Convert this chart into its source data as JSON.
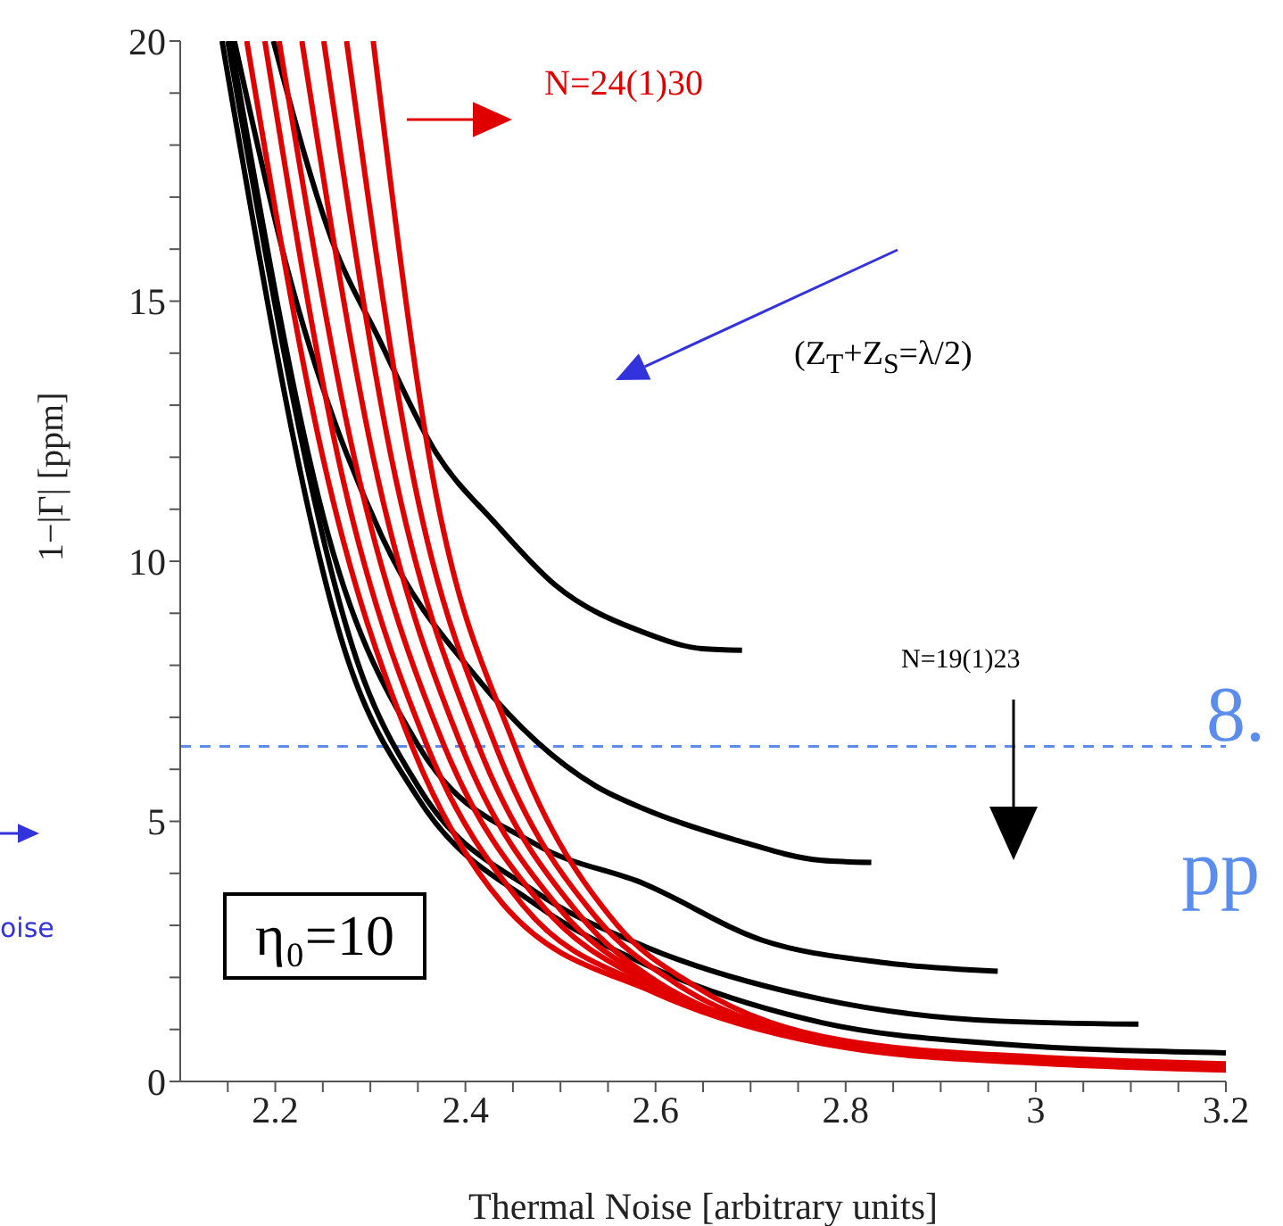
{
  "chart_data": {
    "type": "line",
    "xlabel": "Thermal Noise [arbitrary units]",
    "ylabel": "1−|Γ|  [ppm]",
    "xlim": [
      2.1,
      3.2
    ],
    "xticks": [
      {
        "value": 2.15,
        "label": null
      },
      2.2,
      {
        "value": 2.25,
        "label": null
      },
      2.4,
      {
        "value": 2.3,
        "label": null
      },
      {
        "value": 2.35,
        "label": null
      },
      {
        "value": 2.45,
        "label": null
      },
      {
        "value": 2.5,
        "label": null
      },
      {
        "value": 2.55,
        "label": null
      },
      2.6,
      {
        "value": 2.65,
        "label": null
      },
      {
        "value": 2.7,
        "label": null
      },
      {
        "value": 2.75,
        "label": null
      },
      2.8,
      {
        "value": 2.85,
        "label": null
      },
      {
        "value": 2.9,
        "label": null
      },
      {
        "value": 2.95,
        "label": null
      },
      3,
      {
        "value": 3.05,
        "label": null
      },
      {
        "value": 3.1,
        "label": null
      },
      {
        "value": 3.15,
        "label": null
      },
      3.2
    ],
    "ylim": [
      0,
      20
    ],
    "yticks": [
      0,
      {
        "value": 1,
        "label": null
      },
      {
        "value": 2,
        "label": null
      },
      {
        "value": 3,
        "label": null
      },
      {
        "value": 4,
        "label": null
      },
      5,
      {
        "value": 6,
        "label": null
      },
      {
        "value": 7,
        "label": null
      },
      {
        "value": 8,
        "label": null
      },
      {
        "value": 9,
        "label": null
      },
      10,
      {
        "value": 11,
        "label": null
      },
      {
        "value": 12,
        "label": null
      },
      {
        "value": 13,
        "label": null
      },
      {
        "value": 14,
        "label": null
      },
      15,
      {
        "value": 16,
        "label": null
      },
      {
        "value": 17,
        "label": null
      },
      {
        "value": 18,
        "label": null
      },
      {
        "value": 19,
        "label": null
      },
      20
    ],
    "marker": "none",
    "line_style": "solid",
    "series": [
      {
        "color": "#000000",
        "x": [
          2.198,
          2.264,
          2.307,
          2.369,
          2.432,
          2.494,
          2.588,
          2.649,
          2.691
        ],
        "values": [
          20,
          15.96,
          14.35,
          12.09,
          10.72,
          9.55,
          8.63,
          8.32,
          8.29
        ]
      },
      {
        "color": "#000000",
        "x": [
          2.157,
          2.213,
          2.312,
          2.413,
          2.537,
          2.588,
          2.681,
          2.775,
          2.827
        ],
        "values": [
          20,
          15.6,
          10.48,
          7.74,
          5.68,
          5.24,
          4.66,
          4.25,
          4.21
        ]
      },
      {
        "color": "#000000",
        "x": [
          2.153,
          2.256,
          2.35,
          2.475,
          2.588,
          2.713,
          2.837,
          2.96
        ],
        "values": [
          20,
          10.48,
          6.47,
          4.55,
          3.8,
          2.71,
          2.29,
          2.12
        ]
      },
      {
        "color": "#000000",
        "x": [
          2.15,
          2.288,
          2.35,
          2.475,
          2.588,
          2.775,
          2.962,
          3.108
        ],
        "values": [
          20,
          7.98,
          5.68,
          3.63,
          2.6,
          1.58,
          1.16,
          1.1
        ]
      },
      {
        "color": "#000000",
        "x": [
          2.144,
          2.275,
          2.35,
          2.475,
          2.588,
          2.775,
          2.962,
          3.2
        ],
        "values": [
          20,
          8.18,
          5.45,
          3.39,
          2.26,
          1.13,
          0.72,
          0.55
        ]
      },
      {
        "color": "#e00000",
        "x": [
          2.17,
          2.25,
          2.344,
          2.44,
          2.6,
          2.8,
          3,
          3.2
        ],
        "values": [
          20,
          12,
          6.44,
          3.4,
          1.7,
          0.65,
          0.35,
          0.22
        ]
      },
      {
        "color": "#e00000",
        "x": [
          2.189,
          2.266,
          2.36,
          2.46,
          2.6,
          2.8,
          3,
          3.2
        ],
        "values": [
          20,
          12,
          6.44,
          3.4,
          1.76,
          0.68,
          0.37,
          0.24
        ]
      },
      {
        "color": "#e00000",
        "x": [
          2.204,
          2.283,
          2.378,
          2.48,
          2.6,
          2.8,
          3,
          3.2
        ],
        "values": [
          20,
          12,
          6.44,
          3.4,
          1.82,
          0.7,
          0.39,
          0.26
        ]
      },
      {
        "color": "#e00000",
        "x": [
          2.228,
          2.303,
          2.396,
          2.5,
          2.6,
          2.8,
          3,
          3.2
        ],
        "values": [
          20,
          12,
          6.44,
          3.3,
          1.88,
          0.72,
          0.41,
          0.28
        ]
      },
      {
        "color": "#e00000",
        "x": [
          2.251,
          2.322,
          2.414,
          2.52,
          2.6,
          2.8,
          3,
          3.2
        ],
        "values": [
          20,
          12,
          6.44,
          3.2,
          1.94,
          0.74,
          0.43,
          0.3
        ]
      },
      {
        "color": "#e00000",
        "x": [
          2.275,
          2.341,
          2.432,
          2.54,
          2.62,
          2.8,
          3,
          3.2
        ],
        "values": [
          20,
          12,
          6.44,
          3.1,
          1.9,
          0.76,
          0.45,
          0.32
        ]
      },
      {
        "color": "#e00000",
        "x": [
          2.303,
          2.362,
          2.452,
          2.56,
          2.64,
          2.8,
          3,
          3.2
        ],
        "values": [
          20,
          12,
          6.44,
          3,
          1.85,
          0.78,
          0.47,
          0.34
        ]
      }
    ],
    "ref_lines": [
      {
        "axis": "y",
        "value": 6.44,
        "color": "#5b8def",
        "line_style": "dashed"
      }
    ],
    "annotations": [
      "N=24(1)30",
      "(Z$_{T}$+Z$_{S}$=λ/2)",
      "N=19(1)23",
      "η₀=10",
      "8.",
      "pp",
      "oise"
    ]
  }
}
